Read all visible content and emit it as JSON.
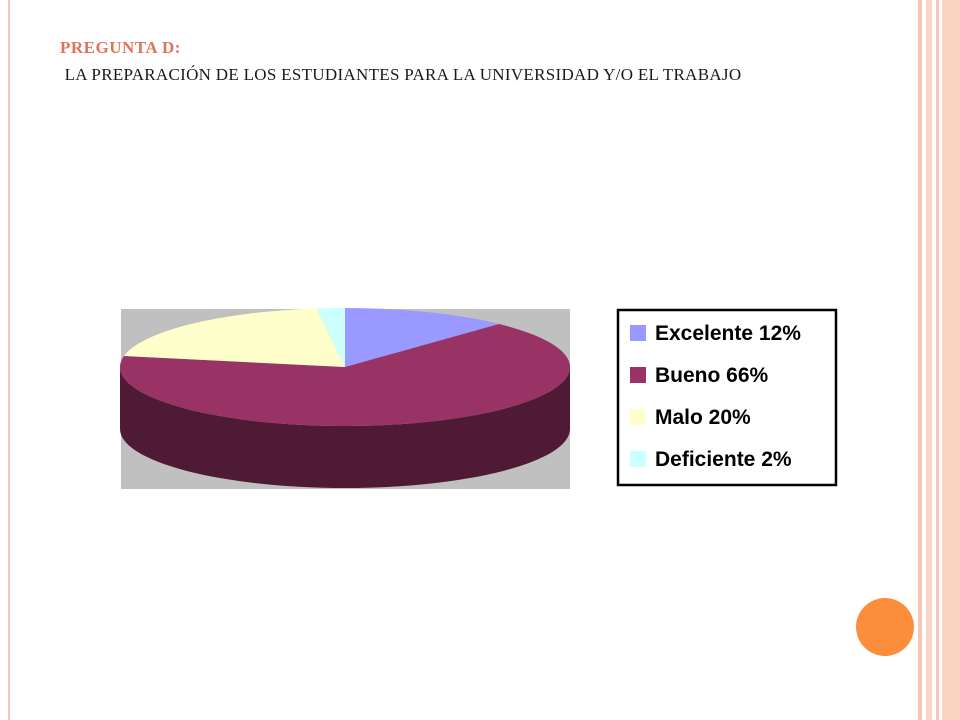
{
  "slide": {
    "title_line1": "PREGUNTA D:",
    "title_line2": " LA PREPARACIÓN DE LOS ESTUDIANTES PARA LA UNIVERSIDAD Y/O EL TRABAJO"
  },
  "colors": {
    "title_accent": "#e0745a",
    "decor_circle": "#fb8d3b",
    "stripe_pink": "#f6c7b6",
    "plot_bg": "#c0c0c0"
  },
  "chart_data": {
    "type": "pie",
    "three_d": true,
    "legend_position": "right",
    "categories": [
      "Excelente",
      "Bueno",
      "Malo",
      "Deficiente"
    ],
    "values": [
      12,
      66,
      20,
      2
    ],
    "legend_labels": [
      "Excelente 12%",
      "Bueno 66%",
      "Malo 20%",
      "Deficiente 2%"
    ],
    "colors": [
      "#9999ff",
      "#993366",
      "#ffffcc",
      "#ccffff"
    ],
    "side_colors": [
      "#5c5c99",
      "#4f1a35",
      "#9a9a7a",
      "#7a9999"
    ]
  }
}
